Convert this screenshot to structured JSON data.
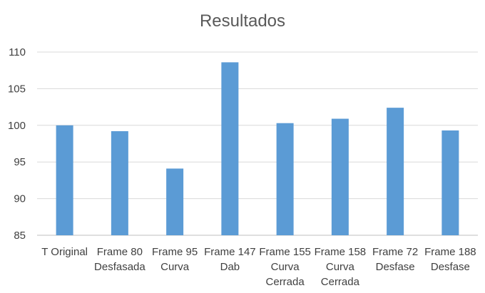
{
  "chart_data": {
    "type": "bar",
    "title": "Resultados",
    "xlabel": "",
    "ylabel": "",
    "ylim": [
      85,
      110
    ],
    "yticks": [
      85,
      90,
      95,
      100,
      105,
      110
    ],
    "yticks_labels": [
      "85",
      "90",
      "95",
      "100",
      "105",
      "110"
    ],
    "grid": true,
    "legend": "none",
    "categories": [
      [
        "T Original"
      ],
      [
        "Frame 80",
        "Desfasada"
      ],
      [
        "Frame 95",
        "Curva"
      ],
      [
        "Frame 147",
        "Dab"
      ],
      [
        "Frame 155",
        "Curva",
        "Cerrada"
      ],
      [
        "Frame 158",
        "Curva",
        "Cerrada"
      ],
      [
        "Frame 72",
        "Desfase"
      ],
      [
        "Frame 188",
        "Desfase"
      ]
    ],
    "values": [
      100,
      99.2,
      94.1,
      108.6,
      100.3,
      100.9,
      102.4,
      99.3
    ],
    "colors": {
      "bar": "#5b9bd5",
      "grid": "#d9d9d9",
      "axis": "#bfbfbf"
    }
  }
}
